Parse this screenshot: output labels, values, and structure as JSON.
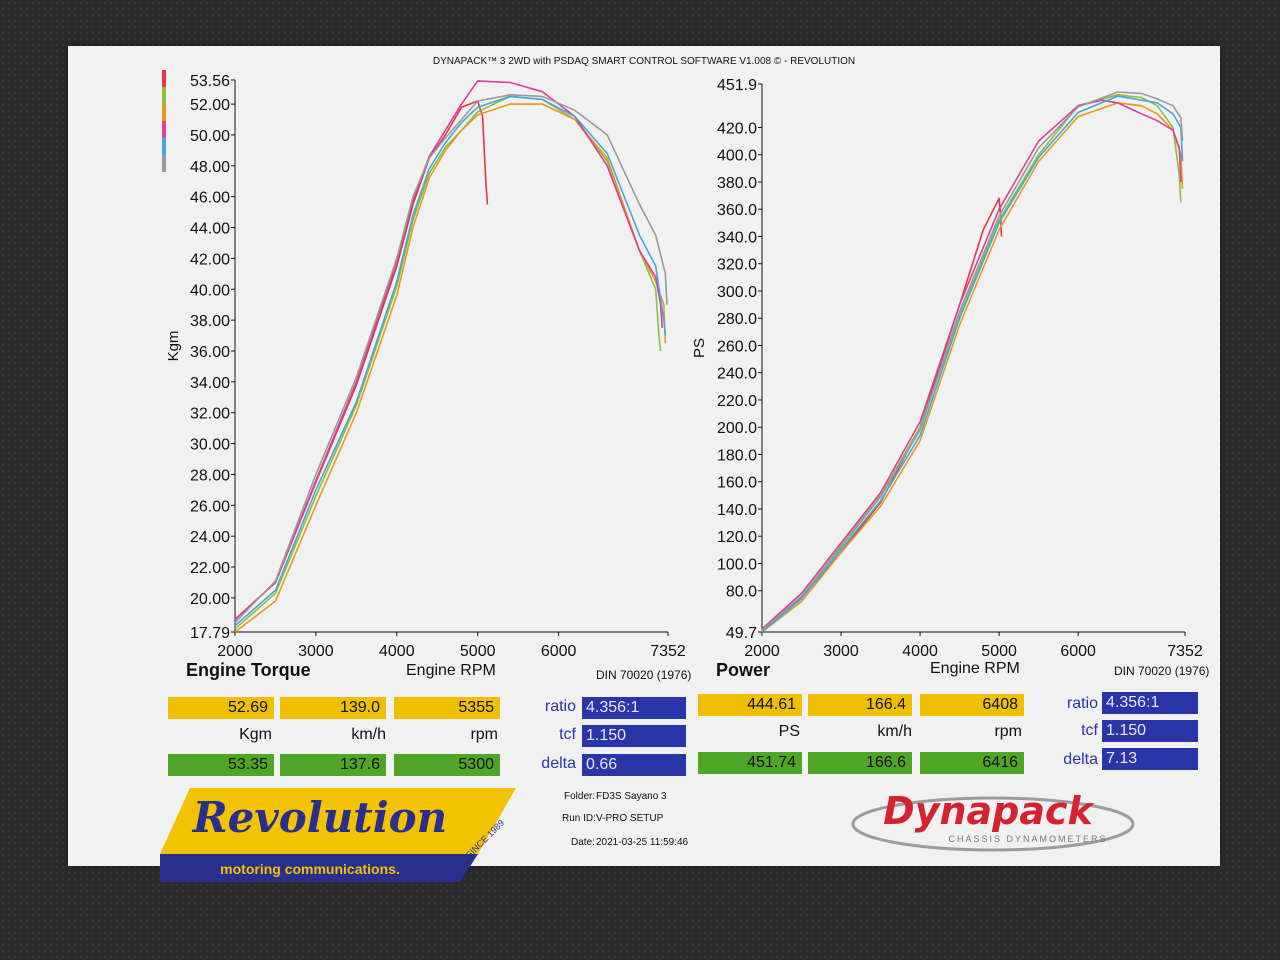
{
  "header": {
    "title": "DYNAPACK™ 3 2WD with PSDAQ SMART CONTROL SOFTWARE V1.008 © - REVOLUTION"
  },
  "colors": {
    "series": [
      "#e8334a",
      "#8cbf3a",
      "#e79a1a",
      "#dd3f9a",
      "#45a7dc",
      "#9a9a9a"
    ]
  },
  "torque": {
    "heading": "Engine Torque",
    "xlabel": "Engine RPM",
    "din": "DIN 70020 (1976)",
    "readout": {
      "yellow": [
        "52.69",
        "139.0",
        "5355"
      ],
      "units": [
        "Kgm",
        "km/h",
        "rpm"
      ],
      "green": [
        "53.35",
        "137.6",
        "5300"
      ],
      "labels": [
        "ratio",
        "tcf",
        "delta"
      ],
      "blue": [
        "4.356:1",
        "1.150",
        "0.66"
      ]
    }
  },
  "power": {
    "heading": "Power",
    "xlabel": "Engine RPM",
    "din": "DIN 70020 (1976)",
    "readout": {
      "yellow": [
        "444.61",
        "166.4",
        "6408"
      ],
      "units": [
        "PS",
        "km/h",
        "rpm"
      ],
      "green": [
        "451.74",
        "166.6",
        "6416"
      ],
      "labels": [
        "ratio",
        "tcf",
        "delta"
      ],
      "blue": [
        "4.356:1",
        "1.150",
        "7.13"
      ]
    }
  },
  "meta": {
    "folder_label": "Folder:",
    "folder": "FD3S Sayano 3",
    "run_label": "Run ID:",
    "run": "V-PRO SETUP",
    "date_label": "Date:",
    "date": "2021-03-25 11:59:46"
  },
  "logos": {
    "revolution": "Revolution",
    "revolution_sub": "motoring communications.",
    "revolution_since": "SINCE 1989",
    "dynapack": "Dynapack",
    "dynapack_sub": "CHASSIS DYNAMOMETERS"
  },
  "chart_data": [
    {
      "type": "line",
      "title": "",
      "xlabel": "Engine RPM",
      "ylabel": "Kgm",
      "xlim": [
        2000,
        7352
      ],
      "ylim": [
        17.79,
        53.56
      ],
      "xticks": [
        "2000",
        "3000",
        "4000",
        "5000",
        "6000",
        "7352"
      ],
      "yticks": [
        "53.56",
        "52.00",
        "50.00",
        "48.00",
        "46.00",
        "44.00",
        "42.00",
        "40.00",
        "38.00",
        "36.00",
        "34.00",
        "32.00",
        "30.00",
        "28.00",
        "26.00",
        "24.00",
        "22.00",
        "20.00",
        "17.79"
      ],
      "series": [
        {
          "x": [
            2000,
            2500,
            3000,
            3500,
            4000,
            4200,
            4400,
            4600,
            4800,
            5000,
            5060,
            5100,
            5120
          ],
          "y": [
            18.6,
            21.0,
            27.5,
            33.8,
            41.5,
            45.5,
            48.5,
            50.0,
            51.8,
            52.2,
            51.2,
            47.0,
            45.5
          ]
        },
        {
          "x": [
            2000,
            2500,
            3000,
            3500,
            4000,
            4200,
            4400,
            4600,
            4800,
            5000,
            5400,
            5800,
            6200,
            6600,
            7000,
            7200,
            7240,
            7260
          ],
          "y": [
            18.0,
            20.3,
            26.6,
            32.5,
            40.2,
            44.5,
            47.5,
            49.2,
            50.3,
            51.5,
            52.5,
            52.3,
            51.0,
            48.3,
            42.5,
            40.0,
            37.0,
            36.0
          ]
        },
        {
          "x": [
            2000,
            2500,
            3000,
            3500,
            4000,
            4200,
            4400,
            4600,
            4800,
            5000,
            5400,
            5800,
            6200,
            6600,
            7000,
            7200,
            7300,
            7320
          ],
          "y": [
            17.79,
            19.8,
            26.0,
            32.0,
            39.6,
            44.0,
            47.2,
            49.0,
            50.3,
            51.3,
            52.0,
            52.0,
            51.0,
            48.5,
            42.5,
            40.5,
            39.0,
            36.5
          ]
        },
        {
          "x": [
            2000,
            2500,
            3000,
            3500,
            4000,
            4200,
            4400,
            4600,
            4800,
            5000,
            5400,
            5800,
            6200,
            6600,
            7000,
            7200,
            7260,
            7280
          ],
          "y": [
            18.6,
            21.0,
            27.6,
            34.0,
            41.8,
            45.8,
            48.6,
            50.3,
            52.0,
            53.5,
            53.4,
            52.8,
            51.2,
            48.0,
            42.5,
            40.8,
            39.0,
            37.5
          ]
        },
        {
          "x": [
            2000,
            2500,
            3000,
            3500,
            4000,
            4200,
            4400,
            4600,
            4800,
            5000,
            5400,
            5800,
            6200,
            6600,
            7000,
            7200,
            7300,
            7320
          ],
          "y": [
            18.2,
            20.5,
            27.0,
            32.7,
            40.5,
            44.8,
            47.8,
            49.5,
            50.8,
            51.8,
            52.5,
            52.3,
            51.2,
            48.8,
            43.5,
            41.5,
            38.0,
            37.0
          ]
        },
        {
          "x": [
            2000,
            2500,
            3000,
            3500,
            4000,
            4200,
            4400,
            4600,
            4800,
            5000,
            5400,
            5800,
            6200,
            6600,
            7000,
            7200,
            7320,
            7340
          ],
          "y": [
            18.4,
            21.1,
            28.0,
            34.3,
            42.0,
            46.0,
            48.5,
            49.8,
            51.0,
            52.2,
            52.6,
            52.5,
            51.6,
            50.0,
            45.5,
            43.5,
            41.0,
            39.0
          ]
        }
      ]
    },
    {
      "type": "line",
      "title": "",
      "xlabel": "Engine RPM",
      "ylabel": "PS",
      "xlim": [
        2000,
        7352
      ],
      "ylim": [
        49.7,
        451.9
      ],
      "xticks": [
        "2000",
        "3000",
        "4000",
        "5000",
        "6000",
        "7352"
      ],
      "yticks": [
        "451.9",
        "420.0",
        "400.0",
        "380.0",
        "360.0",
        "340.0",
        "320.0",
        "300.0",
        "280.0",
        "260.0",
        "240.0",
        "220.0",
        "200.0",
        "180.0",
        "160.0",
        "140.0",
        "120.0",
        "100.0",
        "80.0",
        "49.7"
      ],
      "series": [
        {
          "x": [
            2000,
            2500,
            3000,
            3500,
            4000,
            4500,
            4800,
            5000,
            5020,
            5030
          ],
          "y": [
            51,
            75,
            108,
            145,
            200,
            290,
            345,
            368,
            355,
            340
          ]
        },
        {
          "x": [
            2000,
            2500,
            3000,
            3500,
            4000,
            4500,
            5000,
            5500,
            6000,
            6500,
            6800,
            7000,
            7200,
            7280,
            7300
          ],
          "y": [
            50,
            76,
            113,
            150,
            200,
            282,
            352,
            400,
            436,
            444,
            442,
            436,
            420,
            385,
            365
          ]
        },
        {
          "x": [
            2000,
            2500,
            3000,
            3500,
            4000,
            4500,
            5000,
            5500,
            6000,
            6500,
            6800,
            7000,
            7200,
            7300,
            7320
          ],
          "y": [
            49.7,
            72,
            108,
            142,
            190,
            275,
            345,
            395,
            428,
            438,
            436,
            430,
            418,
            400,
            375
          ]
        },
        {
          "x": [
            2000,
            2500,
            3000,
            3500,
            4000,
            4500,
            5000,
            5500,
            6000,
            6300,
            6500,
            6800,
            7000,
            7200,
            7280,
            7300
          ],
          "y": [
            52,
            78,
            115,
            152,
            204,
            290,
            360,
            410,
            436,
            440,
            438,
            430,
            425,
            418,
            405,
            380
          ]
        },
        {
          "x": [
            2000,
            2500,
            3000,
            3500,
            4000,
            4500,
            5000,
            5500,
            6000,
            6500,
            6800,
            7000,
            7200,
            7300,
            7320
          ],
          "y": [
            50,
            74,
            110,
            146,
            194,
            280,
            350,
            398,
            431,
            443,
            440,
            438,
            430,
            420,
            395
          ]
        },
        {
          "x": [
            2000,
            2500,
            3000,
            3500,
            4000,
            4500,
            5000,
            5500,
            6000,
            6500,
            6800,
            7000,
            7200,
            7300,
            7320
          ],
          "y": [
            51,
            76,
            112,
            149,
            198,
            285,
            355,
            405,
            435,
            446,
            445,
            441,
            436,
            427,
            410
          ]
        }
      ]
    }
  ]
}
